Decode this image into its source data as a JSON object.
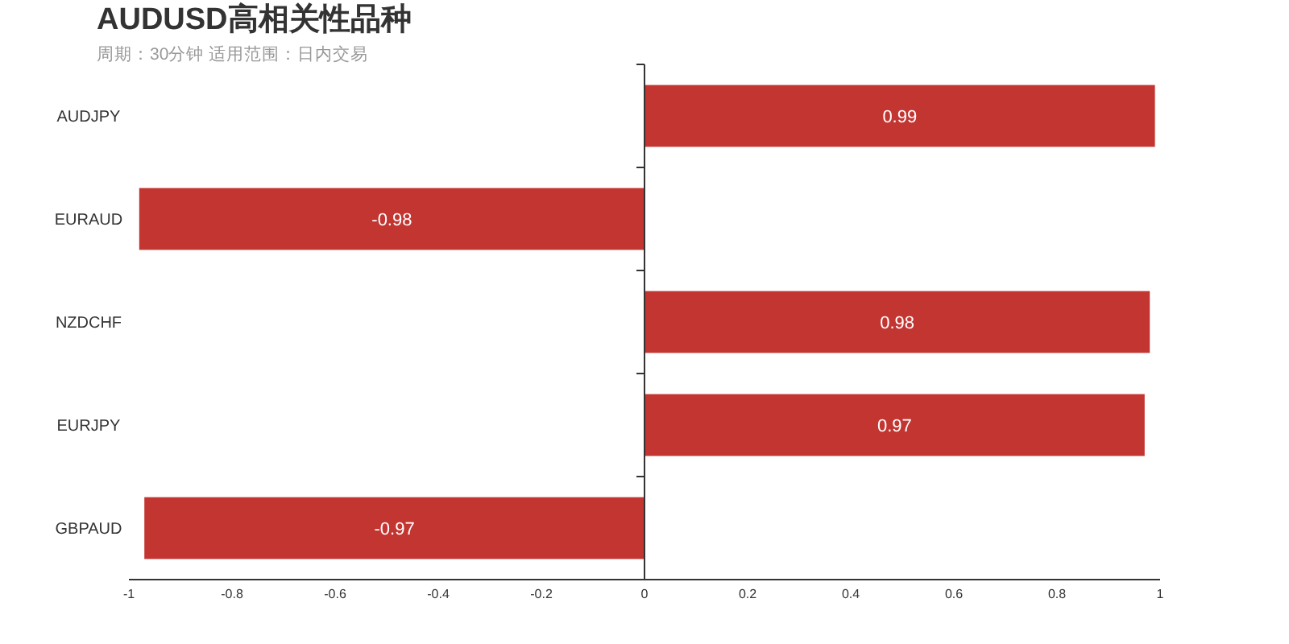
{
  "chart_data": {
    "type": "bar",
    "orientation": "horizontal",
    "title": "AUDUSD高相关性品种",
    "subtitle": "周期：30分钟 适用范围：日内交易",
    "categories": [
      "AUDJPY",
      "EURAUD",
      "NZDCHF",
      "EURJPY",
      "GBPAUD"
    ],
    "values": [
      0.99,
      -0.98,
      0.98,
      0.97,
      -0.97
    ],
    "color": "#c23531",
    "xlim": [
      -1,
      1
    ],
    "xticks": [
      -1,
      -0.8,
      -0.6,
      -0.4,
      -0.2,
      0,
      0.2,
      0.4,
      0.6,
      0.8,
      1
    ],
    "data_labels": true
  }
}
